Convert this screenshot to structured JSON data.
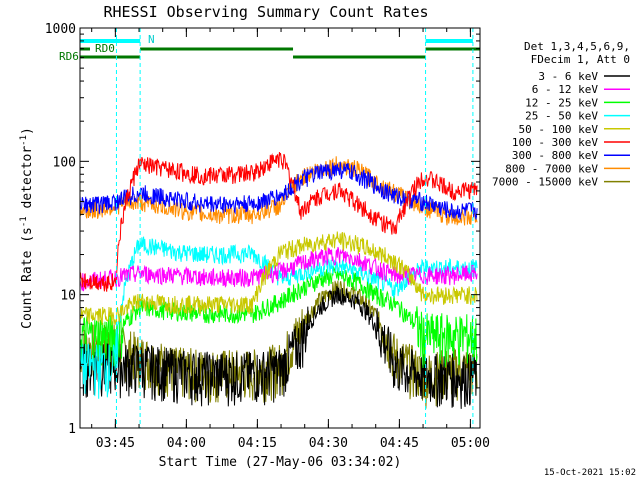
{
  "chart_data": {
    "type": "line",
    "title": "RHESSI Observing Summary Count Rates",
    "xlabel": "Start Time (27-May-06 03:34:02)",
    "ylabel": "Count Rate (s⁻¹ detector⁻¹)",
    "ylabel_main": "Count Rate (s",
    "ylabel_sup1": "-1",
    "ylabel_mid": " detector",
    "ylabel_sup2": "-1",
    "ylabel_end": ")",
    "yscale": "log",
    "ylim": [
      1,
      1000
    ],
    "xlim_minutes": [
      3.5,
      65.0
    ],
    "x_ticks": [
      {
        "label": "03:45",
        "min": 10.97
      },
      {
        "label": "04:00",
        "min": 25.97
      },
      {
        "label": "04:15",
        "min": 40.97
      },
      {
        "label": "04:30",
        "min": 55.97
      },
      {
        "label": "04:45",
        "min": 70.97
      },
      {
        "label": "05:00",
        "min": 85.97
      }
    ],
    "y_ticks": [
      "1",
      "10",
      "100",
      "1000"
    ],
    "legend_header": [
      "Det 1,3,4,5,6,9,",
      "FDecim 1, Att 0"
    ],
    "legend_placement": "right",
    "series": [
      {
        "name": "3 - 6 keV",
        "color": "#000000",
        "points": [
          [
            3.5,
            3.0
          ],
          [
            8,
            3.0
          ],
          [
            16,
            3.0
          ],
          [
            24,
            2.7
          ],
          [
            30,
            2.6
          ],
          [
            40,
            2.6
          ],
          [
            46,
            2.8
          ],
          [
            50,
            4.5
          ],
          [
            54,
            8
          ],
          [
            58,
            10.2
          ],
          [
            62,
            9
          ],
          [
            66,
            6
          ],
          [
            70,
            3
          ],
          [
            76,
            2.5
          ],
          [
            82,
            2.5
          ],
          [
            87,
            2.5
          ]
        ]
      },
      {
        "name": "6 - 12 keV",
        "color": "#ff00ff",
        "points": [
          [
            3.5,
            12.5
          ],
          [
            8,
            13
          ],
          [
            11,
            13.5
          ],
          [
            16,
            14.5
          ],
          [
            24,
            14
          ],
          [
            30,
            13.5
          ],
          [
            40,
            13.5
          ],
          [
            46,
            15
          ],
          [
            50,
            17
          ],
          [
            54,
            19
          ],
          [
            58,
            20
          ],
          [
            62,
            18.5
          ],
          [
            66,
            16
          ],
          [
            70,
            14
          ],
          [
            76,
            14
          ],
          [
            82,
            14
          ],
          [
            87,
            14.5
          ]
        ]
      },
      {
        "name": "12 - 25 keV",
        "color": "#00ff00",
        "points": [
          [
            3.5,
            5
          ],
          [
            8,
            5
          ],
          [
            11,
            5
          ],
          [
            16,
            8
          ],
          [
            24,
            7.5
          ],
          [
            30,
            7.2
          ],
          [
            40,
            7.2
          ],
          [
            46,
            9
          ],
          [
            50,
            11
          ],
          [
            54,
            13
          ],
          [
            58,
            14
          ],
          [
            62,
            12.5
          ],
          [
            66,
            10
          ],
          [
            70,
            8.5
          ],
          [
            76,
            5
          ],
          [
            82,
            5
          ],
          [
            87,
            5
          ]
        ]
      },
      {
        "name": "25 - 50 keV",
        "color": "#00ffff",
        "points": [
          [
            3.5,
            3
          ],
          [
            8,
            3
          ],
          [
            11,
            3
          ],
          [
            16,
            24
          ],
          [
            24,
            21
          ],
          [
            30,
            20
          ],
          [
            40,
            20.5
          ],
          [
            46,
            13
          ],
          [
            50,
            14.5
          ],
          [
            54,
            16
          ],
          [
            58,
            16.5
          ],
          [
            62,
            15
          ],
          [
            66,
            13
          ],
          [
            70,
            11
          ],
          [
            76,
            16
          ],
          [
            82,
            16
          ],
          [
            87,
            16
          ]
        ]
      },
      {
        "name": "50 - 100 keV",
        "color": "#c8c800",
        "points": [
          [
            3.5,
            7
          ],
          [
            8,
            7
          ],
          [
            11,
            7
          ],
          [
            16,
            9
          ],
          [
            24,
            8.5
          ],
          [
            30,
            8.5
          ],
          [
            40,
            8.5
          ],
          [
            46,
            21
          ],
          [
            50,
            23
          ],
          [
            54,
            25
          ],
          [
            58,
            26
          ],
          [
            62,
            24
          ],
          [
            66,
            21
          ],
          [
            70,
            18
          ],
          [
            76,
            10
          ],
          [
            82,
            10
          ],
          [
            87,
            10
          ]
        ]
      },
      {
        "name": "100 - 300 keV",
        "color": "#ff0000",
        "points": [
          [
            3.5,
            13
          ],
          [
            8,
            12.5
          ],
          [
            11,
            12.5
          ],
          [
            16,
            95
          ],
          [
            24,
            85
          ],
          [
            30,
            78
          ],
          [
            40,
            82
          ],
          [
            46,
            108
          ],
          [
            50,
            42
          ],
          [
            54,
            55
          ],
          [
            58,
            62
          ],
          [
            62,
            48
          ],
          [
            66,
            38
          ],
          [
            70,
            30
          ],
          [
            76,
            78
          ],
          [
            82,
            60
          ],
          [
            87,
            62
          ]
        ]
      },
      {
        "name": "300 - 800 keV",
        "color": "#0000ff",
        "points": [
          [
            3.5,
            48
          ],
          [
            8,
            48
          ],
          [
            11,
            50
          ],
          [
            16,
            58
          ],
          [
            24,
            52
          ],
          [
            30,
            48
          ],
          [
            40,
            48
          ],
          [
            46,
            55
          ],
          [
            50,
            72
          ],
          [
            54,
            82
          ],
          [
            58,
            88
          ],
          [
            62,
            80
          ],
          [
            66,
            66
          ],
          [
            70,
            55
          ],
          [
            76,
            50
          ],
          [
            82,
            42
          ],
          [
            87,
            43
          ]
        ]
      },
      {
        "name": "800 - 7000 keV",
        "color": "#ff8c00",
        "points": [
          [
            3.5,
            42
          ],
          [
            8,
            44
          ],
          [
            11,
            47
          ],
          [
            16,
            50
          ],
          [
            24,
            44
          ],
          [
            30,
            40
          ],
          [
            40,
            40
          ],
          [
            46,
            47
          ],
          [
            50,
            75
          ],
          [
            54,
            88
          ],
          [
            58,
            95
          ],
          [
            62,
            87
          ],
          [
            66,
            70
          ],
          [
            70,
            58
          ],
          [
            76,
            46
          ],
          [
            82,
            38
          ],
          [
            87,
            39
          ]
        ]
      },
      {
        "name": "7000 - 15000 keV",
        "color": "#808000",
        "points": [
          [
            3.5,
            4
          ],
          [
            8,
            4.3
          ],
          [
            11,
            4.2
          ],
          [
            16,
            3.5
          ],
          [
            24,
            2.8
          ],
          [
            30,
            2.7
          ],
          [
            40,
            2.7
          ],
          [
            46,
            3
          ],
          [
            50,
            5.5
          ],
          [
            54,
            9
          ],
          [
            58,
            11.5
          ],
          [
            62,
            10
          ],
          [
            66,
            7
          ],
          [
            70,
            3.5
          ],
          [
            76,
            2.5
          ],
          [
            82,
            2.8
          ],
          [
            87,
            2.8
          ]
        ]
      }
    ],
    "annotations": {
      "rd0": "RD0",
      "rd6": "RD6",
      "n": "N",
      "timestamp": "15-Oct-2021 15:02"
    }
  }
}
